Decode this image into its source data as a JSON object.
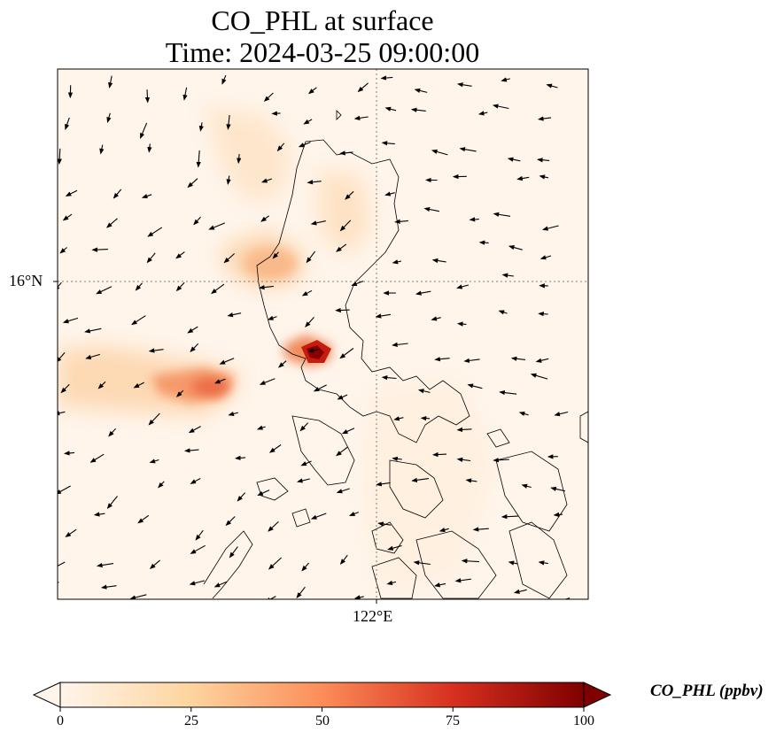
{
  "title_line1": "CO_PHL at surface",
  "title_line2": "Time: 2024-03-25 09:00:00",
  "gridlines": {
    "lat_label": "16°N",
    "lon_label": "122°E"
  },
  "colorbar": {
    "label": "CO_PHL (ppbv)",
    "ticks": [
      "0",
      "25",
      "50",
      "75",
      "100"
    ],
    "min": 0,
    "max": 100,
    "colormap": "Oranges-to-darkred",
    "colors": [
      "#fff5eb",
      "#fdd49e",
      "#fc8d59",
      "#d7301f",
      "#7f0000"
    ],
    "extend": "both"
  },
  "field": {
    "variable": "CO_PHL",
    "units": "ppbv",
    "level": "surface",
    "features": [
      {
        "name": "plume-west",
        "peak_ppbv": 45
      },
      {
        "name": "plume-north",
        "peak_ppbv": 25
      },
      {
        "name": "hotspot-manila",
        "peak_ppbv": 90
      },
      {
        "name": "light-south",
        "peak_ppbv": 8
      }
    ]
  },
  "wind_vectors": "black quiver arrows, mostly north-easterly flow"
}
